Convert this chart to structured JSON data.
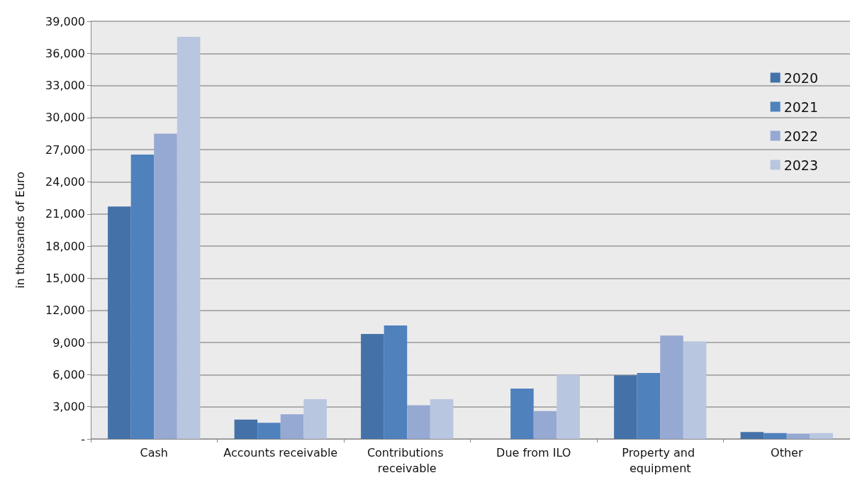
{
  "chart_data": {
    "type": "bar",
    "ylabel": "in thousands of Euro",
    "categories": [
      "Cash",
      "Accounts receivable",
      "Contributions receivable",
      "Due from ILO",
      "Property and equipment",
      "Other"
    ],
    "series": [
      {
        "name": "2020",
        "color": "#4472a8",
        "values": [
          21700,
          1800,
          9800,
          0,
          5950,
          650
        ]
      },
      {
        "name": "2021",
        "color": "#4f81bd",
        "values": [
          26550,
          1500,
          10600,
          4700,
          6150,
          550
        ]
      },
      {
        "name": "2022",
        "color": "#95a9d2",
        "values": [
          28500,
          2300,
          3150,
          2600,
          9650,
          500
        ]
      },
      {
        "name": "2023",
        "color": "#b9c6e0",
        "values": [
          37550,
          3700,
          3700,
          6000,
          9100,
          550
        ]
      }
    ],
    "ylim": [
      0,
      39000
    ],
    "yticks": [
      {
        "value": 0,
        "label": "-"
      },
      {
        "value": 3000,
        "label": "3,000"
      },
      {
        "value": 6000,
        "label": "6,000"
      },
      {
        "value": 9000,
        "label": "9,000"
      },
      {
        "value": 12000,
        "label": "12,000"
      },
      {
        "value": 15000,
        "label": "15,000"
      },
      {
        "value": 18000,
        "label": "18,000"
      },
      {
        "value": 21000,
        "label": "21,000"
      },
      {
        "value": 24000,
        "label": "24,000"
      },
      {
        "value": 27000,
        "label": "27,000"
      },
      {
        "value": 30000,
        "label": "30,000"
      },
      {
        "value": 33000,
        "label": "33,000"
      },
      {
        "value": 36000,
        "label": "36,000"
      },
      {
        "value": 39000,
        "label": "39,000"
      }
    ],
    "grid": "y",
    "legend": "top right"
  }
}
